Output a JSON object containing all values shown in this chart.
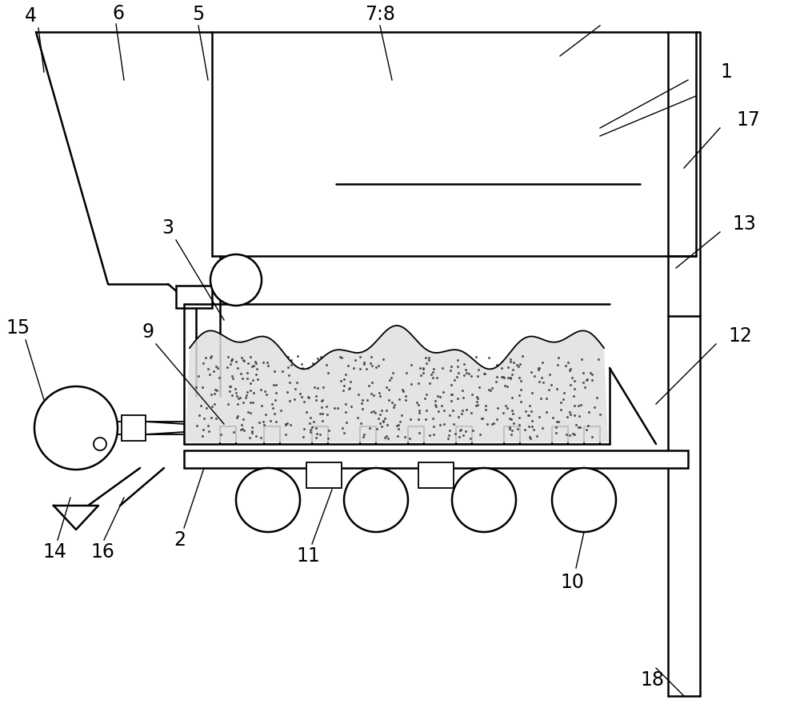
{
  "bg_color": "#ffffff",
  "line_color": "#000000",
  "lw": 1.8,
  "thin_lw": 1.0,
  "annotation_lw": 1.0
}
